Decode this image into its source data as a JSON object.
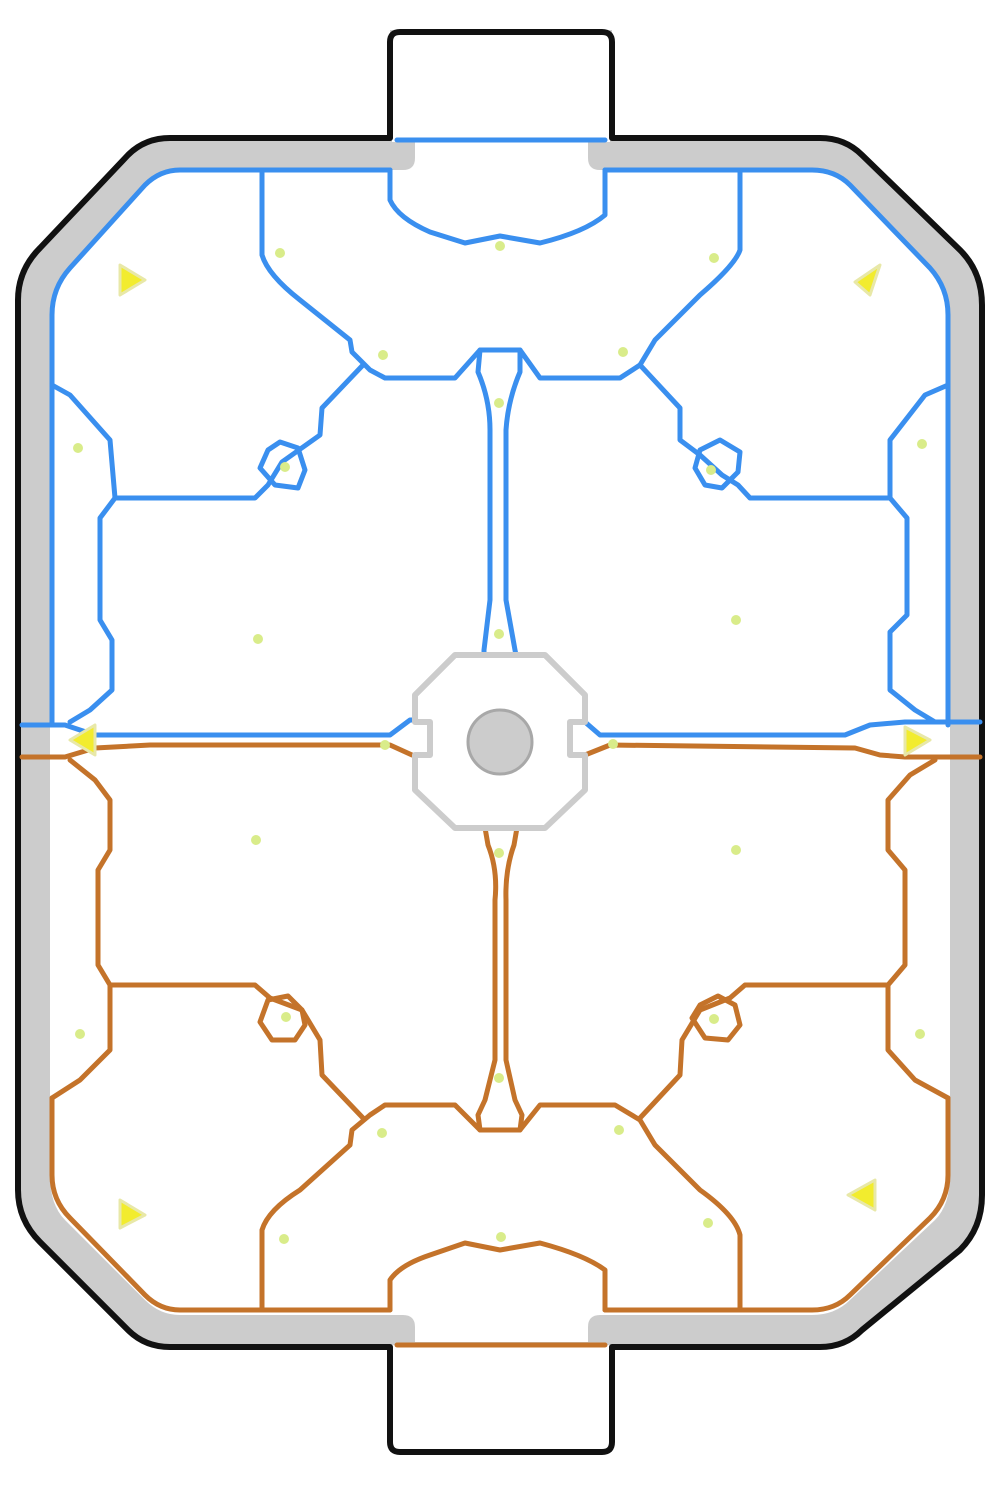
{
  "map": {
    "colors": {
      "background": "#ffffff",
      "outline": "#111111",
      "wall": "#cccccc",
      "blue_team_lines": "#3a8fef",
      "orange_team_lines": "#c4732a",
      "boost_pad_large": "#f2ec2e",
      "boost_pad_small": "#d9ec8a",
      "center_circle": "#cccccc",
      "center_outline": "#a8a8a8"
    },
    "icons": {
      "large_boost": "triangle",
      "small_boost": "dot",
      "center_kickoff": "circle"
    },
    "zones": {
      "blue_half": "top",
      "orange_half": "bottom"
    },
    "counts": {
      "large_boost_pads": 6,
      "small_boost_pads": 28
    }
  }
}
